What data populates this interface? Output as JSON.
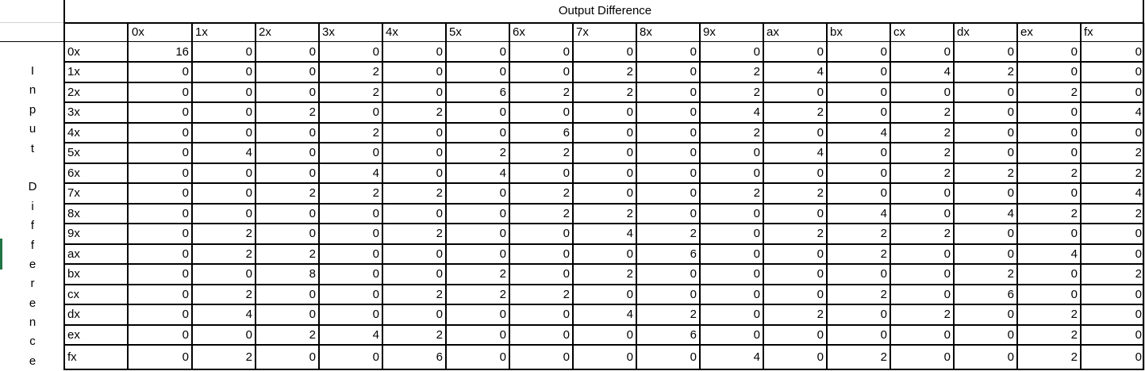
{
  "title": "Output Difference",
  "side_label": "Input Difference",
  "col_headers": [
    "0x",
    "1x",
    "2x",
    "3x",
    "4x",
    "5x",
    "6x",
    "7x",
    "8x",
    "9x",
    "ax",
    "bx",
    "cx",
    "dx",
    "ex",
    "fx"
  ],
  "row_headers": [
    "0x",
    "1x",
    "2x",
    "3x",
    "4x",
    "5x",
    "6x",
    "7x",
    "8x",
    "9x",
    "ax",
    "bx",
    "cx",
    "dx",
    "ex",
    "fx"
  ],
  "rows": [
    [
      "16",
      "0",
      "0",
      "0",
      "0",
      "0",
      "0",
      "0",
      "0",
      "0",
      "0",
      "0",
      "0",
      "0",
      "0",
      "0"
    ],
    [
      "0",
      "0",
      "0",
      "2",
      "0",
      "0",
      "0",
      "2",
      "0",
      "2",
      "4",
      "0",
      "4",
      "2",
      "0",
      "0"
    ],
    [
      "0",
      "0",
      "0",
      "2",
      "0",
      "6",
      "2",
      "2",
      "0",
      "2",
      "0",
      "0",
      "0",
      "0",
      "2",
      "0"
    ],
    [
      "0",
      "0",
      "2",
      "0",
      "2",
      "0",
      "0",
      "0",
      "0",
      "4",
      "2",
      "0",
      "2",
      "0",
      "0",
      "4"
    ],
    [
      "0",
      "0",
      "0",
      "2",
      "0",
      "0",
      "6",
      "0",
      "0",
      "2",
      "0",
      "4",
      "2",
      "0",
      "0",
      "0"
    ],
    [
      "0",
      "4",
      "0",
      "0",
      "0",
      "2",
      "2",
      "0",
      "0",
      "0",
      "4",
      "0",
      "2",
      "0",
      "0",
      "2"
    ],
    [
      "0",
      "0",
      "0",
      "4",
      "0",
      "4",
      "0",
      "0",
      "0",
      "0",
      "0",
      "0",
      "2",
      "2",
      "2",
      "2"
    ],
    [
      "0",
      "0",
      "2",
      "2",
      "2",
      "0",
      "2",
      "0",
      "0",
      "2",
      "2",
      "0",
      "0",
      "0",
      "0",
      "4"
    ],
    [
      "0",
      "0",
      "0",
      "0",
      "0",
      "0",
      "2",
      "2",
      "0",
      "0",
      "0",
      "4",
      "0",
      "4",
      "2",
      "2"
    ],
    [
      "0",
      "2",
      "0",
      "0",
      "2",
      "0",
      "0",
      "4",
      "2",
      "0",
      "2",
      "2",
      "2",
      "0",
      "0",
      "0"
    ],
    [
      "0",
      "2",
      "2",
      "0",
      "0",
      "0",
      "0",
      "0",
      "6",
      "0",
      "0",
      "2",
      "0",
      "0",
      "4",
      "0"
    ],
    [
      "0",
      "0",
      "8",
      "0",
      "0",
      "2",
      "0",
      "2",
      "0",
      "0",
      "0",
      "0",
      "0",
      "2",
      "0",
      "2"
    ],
    [
      "0",
      "2",
      "0",
      "0",
      "2",
      "2",
      "2",
      "0",
      "0",
      "0",
      "0",
      "2",
      "0",
      "6",
      "0",
      "0"
    ],
    [
      "0",
      "4",
      "0",
      "0",
      "0",
      "0",
      "0",
      "4",
      "2",
      "0",
      "2",
      "0",
      "2",
      "0",
      "2",
      "0"
    ],
    [
      "0",
      "0",
      "2",
      "4",
      "2",
      "0",
      "0",
      "0",
      "6",
      "0",
      "0",
      "0",
      "0",
      "0",
      "2",
      "0"
    ],
    [
      "0",
      "2",
      "0",
      "0",
      "6",
      "0",
      "0",
      "0",
      "0",
      "4",
      "0",
      "2",
      "0",
      "0",
      "2",
      "0"
    ]
  ]
}
